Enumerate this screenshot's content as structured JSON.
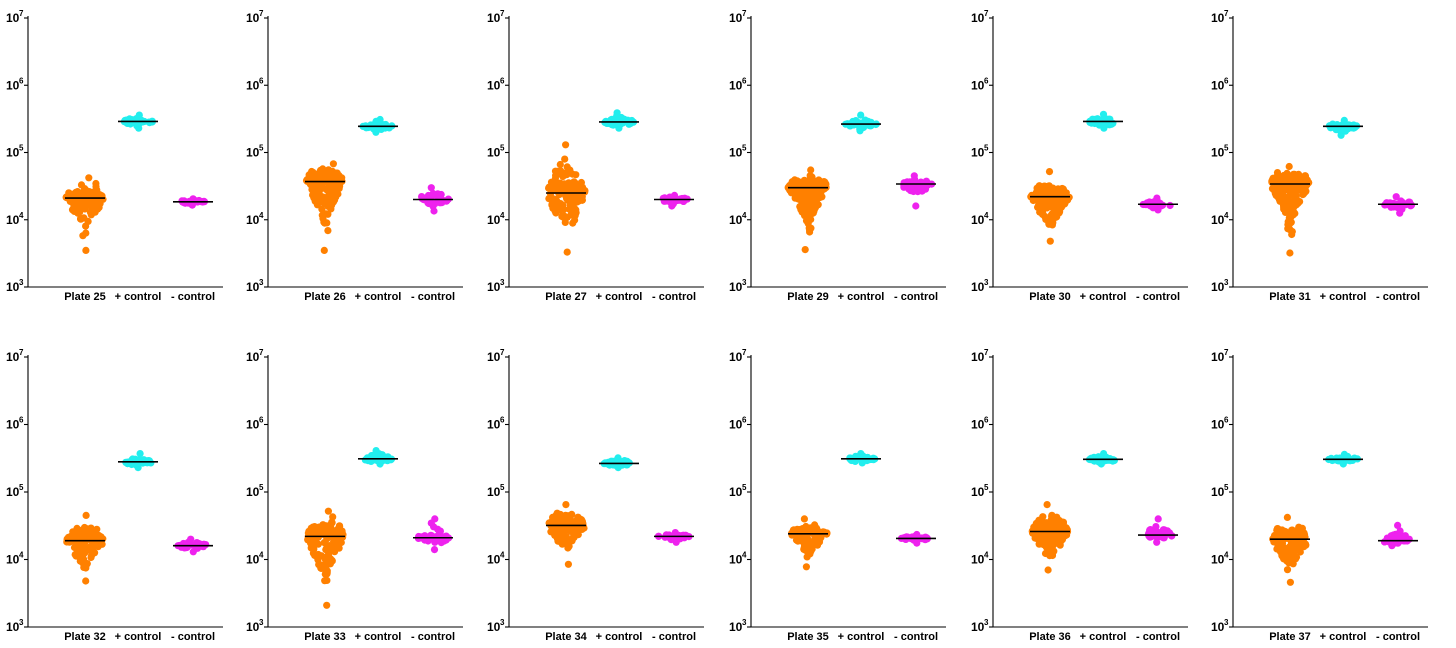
{
  "chart_data": [
    {
      "type": "scatter",
      "seed": 25,
      "yscale": "log",
      "ylim": [
        1000,
        10000000
      ],
      "yticks": [
        "10",
        "10",
        "10",
        "10",
        "10"
      ],
      "ytick_exponents": [
        "3",
        "4",
        "5",
        "6",
        "7"
      ],
      "categories": [
        "Plate 25",
        "+ control",
        "- control"
      ],
      "series": [
        {
          "category": "Plate 25",
          "median": 21000,
          "min": 3500,
          "max": 42000,
          "n": 120,
          "color": "#ff8000"
        },
        {
          "category": "+ control",
          "median": 290000,
          "min": 230000,
          "max": 360000,
          "n": 45,
          "color": "#22eeee"
        },
        {
          "category": "- control",
          "median": 18500,
          "min": 16500,
          "max": 20500,
          "n": 30,
          "color": "#ee22ee"
        }
      ]
    },
    {
      "type": "scatter",
      "seed": 26,
      "yscale": "log",
      "ylim": [
        1000,
        10000000
      ],
      "yticks": [
        "10",
        "10",
        "10",
        "10",
        "10"
      ],
      "ytick_exponents": [
        "3",
        "4",
        "5",
        "6",
        "7"
      ],
      "categories": [
        "Plate 26",
        "+ control",
        "- control"
      ],
      "series": [
        {
          "category": "Plate 26",
          "median": 37000,
          "min": 3500,
          "max": 68000,
          "n": 200,
          "color": "#ff8000"
        },
        {
          "category": "+ control",
          "median": 245000,
          "min": 200000,
          "max": 310000,
          "n": 45,
          "color": "#22eeee"
        },
        {
          "category": "- control",
          "median": 20000,
          "min": 13500,
          "max": 30000,
          "n": 40,
          "color": "#ee22ee"
        }
      ]
    },
    {
      "type": "scatter",
      "seed": 27,
      "yscale": "log",
      "ylim": [
        1000,
        10000000
      ],
      "yticks": [
        "10",
        "10",
        "10",
        "10",
        "10"
      ],
      "ytick_exponents": [
        "3",
        "4",
        "5",
        "6",
        "7"
      ],
      "categories": [
        "Plate 27",
        "+ control",
        "- control"
      ],
      "series": [
        {
          "category": "Plate 27",
          "median": 25000,
          "min": 3300,
          "max": 130000,
          "n": 140,
          "color": "#ff8000"
        },
        {
          "category": "+ control",
          "median": 285000,
          "min": 230000,
          "max": 390000,
          "n": 45,
          "color": "#22eeee"
        },
        {
          "category": "- control",
          "median": 20000,
          "min": 16000,
          "max": 23000,
          "n": 35,
          "color": "#ee22ee"
        }
      ]
    },
    {
      "type": "scatter",
      "seed": 29,
      "yscale": "log",
      "ylim": [
        1000,
        10000000
      ],
      "yticks": [
        "10",
        "10",
        "10",
        "10",
        "10"
      ],
      "ytick_exponents": [
        "3",
        "4",
        "5",
        "6",
        "7"
      ],
      "categories": [
        "Plate 29",
        "+ control",
        "- control"
      ],
      "series": [
        {
          "category": "Plate 29",
          "median": 30000,
          "min": 3600,
          "max": 55000,
          "n": 200,
          "color": "#ff8000"
        },
        {
          "category": "+ control",
          "median": 265000,
          "min": 210000,
          "max": 360000,
          "n": 45,
          "color": "#22eeee"
        },
        {
          "category": "- control",
          "median": 34000,
          "min": 16000,
          "max": 45000,
          "n": 35,
          "color": "#ee22ee"
        }
      ]
    },
    {
      "type": "scatter",
      "seed": 30,
      "yscale": "log",
      "ylim": [
        1000,
        10000000
      ],
      "yticks": [
        "10",
        "10",
        "10",
        "10",
        "10"
      ],
      "ytick_exponents": [
        "3",
        "4",
        "5",
        "6",
        "7"
      ],
      "categories": [
        "Plate 30",
        "+ control",
        "- control"
      ],
      "series": [
        {
          "category": "Plate 30",
          "median": 22000,
          "min": 4800,
          "max": 52000,
          "n": 150,
          "color": "#ff8000"
        },
        {
          "category": "+ control",
          "median": 290000,
          "min": 230000,
          "max": 370000,
          "n": 45,
          "color": "#22eeee"
        },
        {
          "category": "- control",
          "median": 17000,
          "min": 14000,
          "max": 21000,
          "n": 30,
          "color": "#ee22ee"
        }
      ]
    },
    {
      "type": "scatter",
      "seed": 31,
      "yscale": "log",
      "ylim": [
        1000,
        10000000
      ],
      "yticks": [
        "10",
        "10",
        "10",
        "10",
        "10"
      ],
      "ytick_exponents": [
        "3",
        "4",
        "5",
        "6",
        "7"
      ],
      "categories": [
        "Plate 31",
        "+ control",
        "- control"
      ],
      "series": [
        {
          "category": "Plate 31",
          "median": 34000,
          "min": 3200,
          "max": 62000,
          "n": 200,
          "color": "#ff8000"
        },
        {
          "category": "+ control",
          "median": 245000,
          "min": 180000,
          "max": 300000,
          "n": 45,
          "color": "#22eeee"
        },
        {
          "category": "- control",
          "median": 17000,
          "min": 12500,
          "max": 22000,
          "n": 35,
          "color": "#ee22ee"
        }
      ]
    },
    {
      "type": "scatter",
      "seed": 32,
      "yscale": "log",
      "ylim": [
        1000,
        10000000
      ],
      "yticks": [
        "10",
        "10",
        "10",
        "10",
        "10"
      ],
      "ytick_exponents": [
        "3",
        "4",
        "5",
        "6",
        "7"
      ],
      "categories": [
        "Plate 32",
        "+ control",
        "- control"
      ],
      "series": [
        {
          "category": "Plate 32",
          "median": 19000,
          "min": 4800,
          "max": 45000,
          "n": 130,
          "color": "#ff8000"
        },
        {
          "category": "+ control",
          "median": 280000,
          "min": 230000,
          "max": 370000,
          "n": 45,
          "color": "#22eeee"
        },
        {
          "category": "- control",
          "median": 16000,
          "min": 13000,
          "max": 20000,
          "n": 35,
          "color": "#ee22ee"
        }
      ]
    },
    {
      "type": "scatter",
      "seed": 33,
      "yscale": "log",
      "ylim": [
        1000,
        10000000
      ],
      "yticks": [
        "10",
        "10",
        "10",
        "10",
        "10"
      ],
      "ytick_exponents": [
        "3",
        "4",
        "5",
        "6",
        "7"
      ],
      "categories": [
        "Plate 33",
        "+ control",
        "- control"
      ],
      "series": [
        {
          "category": "Plate 33",
          "median": 22000,
          "min": 2100,
          "max": 52000,
          "n": 170,
          "color": "#ff8000"
        },
        {
          "category": "+ control",
          "median": 310000,
          "min": 260000,
          "max": 410000,
          "n": 45,
          "color": "#22eeee"
        },
        {
          "category": "- control",
          "median": 21000,
          "min": 14000,
          "max": 40000,
          "n": 40,
          "color": "#ee22ee"
        }
      ]
    },
    {
      "type": "scatter",
      "seed": 34,
      "yscale": "log",
      "ylim": [
        1000,
        10000000
      ],
      "yticks": [
        "10",
        "10",
        "10",
        "10",
        "10"
      ],
      "ytick_exponents": [
        "3",
        "4",
        "5",
        "6",
        "7"
      ],
      "categories": [
        "Plate 34",
        "+ control",
        "- control"
      ],
      "series": [
        {
          "category": "Plate 34",
          "median": 32000,
          "min": 8500,
          "max": 65000,
          "n": 130,
          "color": "#ff8000"
        },
        {
          "category": "+ control",
          "median": 265000,
          "min": 230000,
          "max": 320000,
          "n": 45,
          "color": "#22eeee"
        },
        {
          "category": "- control",
          "median": 22000,
          "min": 18000,
          "max": 25000,
          "n": 35,
          "color": "#ee22ee"
        }
      ]
    },
    {
      "type": "scatter",
      "seed": 35,
      "yscale": "log",
      "ylim": [
        1000,
        10000000
      ],
      "yticks": [
        "10",
        "10",
        "10",
        "10",
        "10"
      ],
      "ytick_exponents": [
        "3",
        "4",
        "5",
        "6",
        "7"
      ],
      "categories": [
        "Plate 35",
        "+ control",
        "- control"
      ],
      "series": [
        {
          "category": "Plate 35",
          "median": 24000,
          "min": 7800,
          "max": 40000,
          "n": 110,
          "color": "#ff8000"
        },
        {
          "category": "+ control",
          "median": 310000,
          "min": 270000,
          "max": 370000,
          "n": 45,
          "color": "#22eeee"
        },
        {
          "category": "- control",
          "median": 20500,
          "min": 17500,
          "max": 23500,
          "n": 35,
          "color": "#ee22ee"
        }
      ]
    },
    {
      "type": "scatter",
      "seed": 36,
      "yscale": "log",
      "ylim": [
        1000,
        10000000
      ],
      "yticks": [
        "10",
        "10",
        "10",
        "10",
        "10"
      ],
      "ytick_exponents": [
        "3",
        "4",
        "5",
        "6",
        "7"
      ],
      "categories": [
        "Plate 36",
        "+ control",
        "- control"
      ],
      "series": [
        {
          "category": "Plate 36",
          "median": 26000,
          "min": 7000,
          "max": 65000,
          "n": 160,
          "color": "#ff8000"
        },
        {
          "category": "+ control",
          "median": 305000,
          "min": 260000,
          "max": 370000,
          "n": 45,
          "color": "#22eeee"
        },
        {
          "category": "- control",
          "median": 23000,
          "min": 18000,
          "max": 40000,
          "n": 35,
          "color": "#ee22ee"
        }
      ]
    },
    {
      "type": "scatter",
      "seed": 37,
      "yscale": "log",
      "ylim": [
        1000,
        10000000
      ],
      "yticks": [
        "10",
        "10",
        "10",
        "10",
        "10"
      ],
      "ytick_exponents": [
        "3",
        "4",
        "5",
        "6",
        "7"
      ],
      "categories": [
        "Plate 37",
        "+ control",
        "- control"
      ],
      "series": [
        {
          "category": "Plate 37",
          "median": 20000,
          "min": 4600,
          "max": 42000,
          "n": 150,
          "color": "#ff8000"
        },
        {
          "category": "+ control",
          "median": 305000,
          "min": 260000,
          "max": 360000,
          "n": 45,
          "color": "#22eeee"
        },
        {
          "category": "- control",
          "median": 19000,
          "min": 16000,
          "max": 32000,
          "n": 35,
          "color": "#ee22ee"
        }
      ]
    }
  ]
}
